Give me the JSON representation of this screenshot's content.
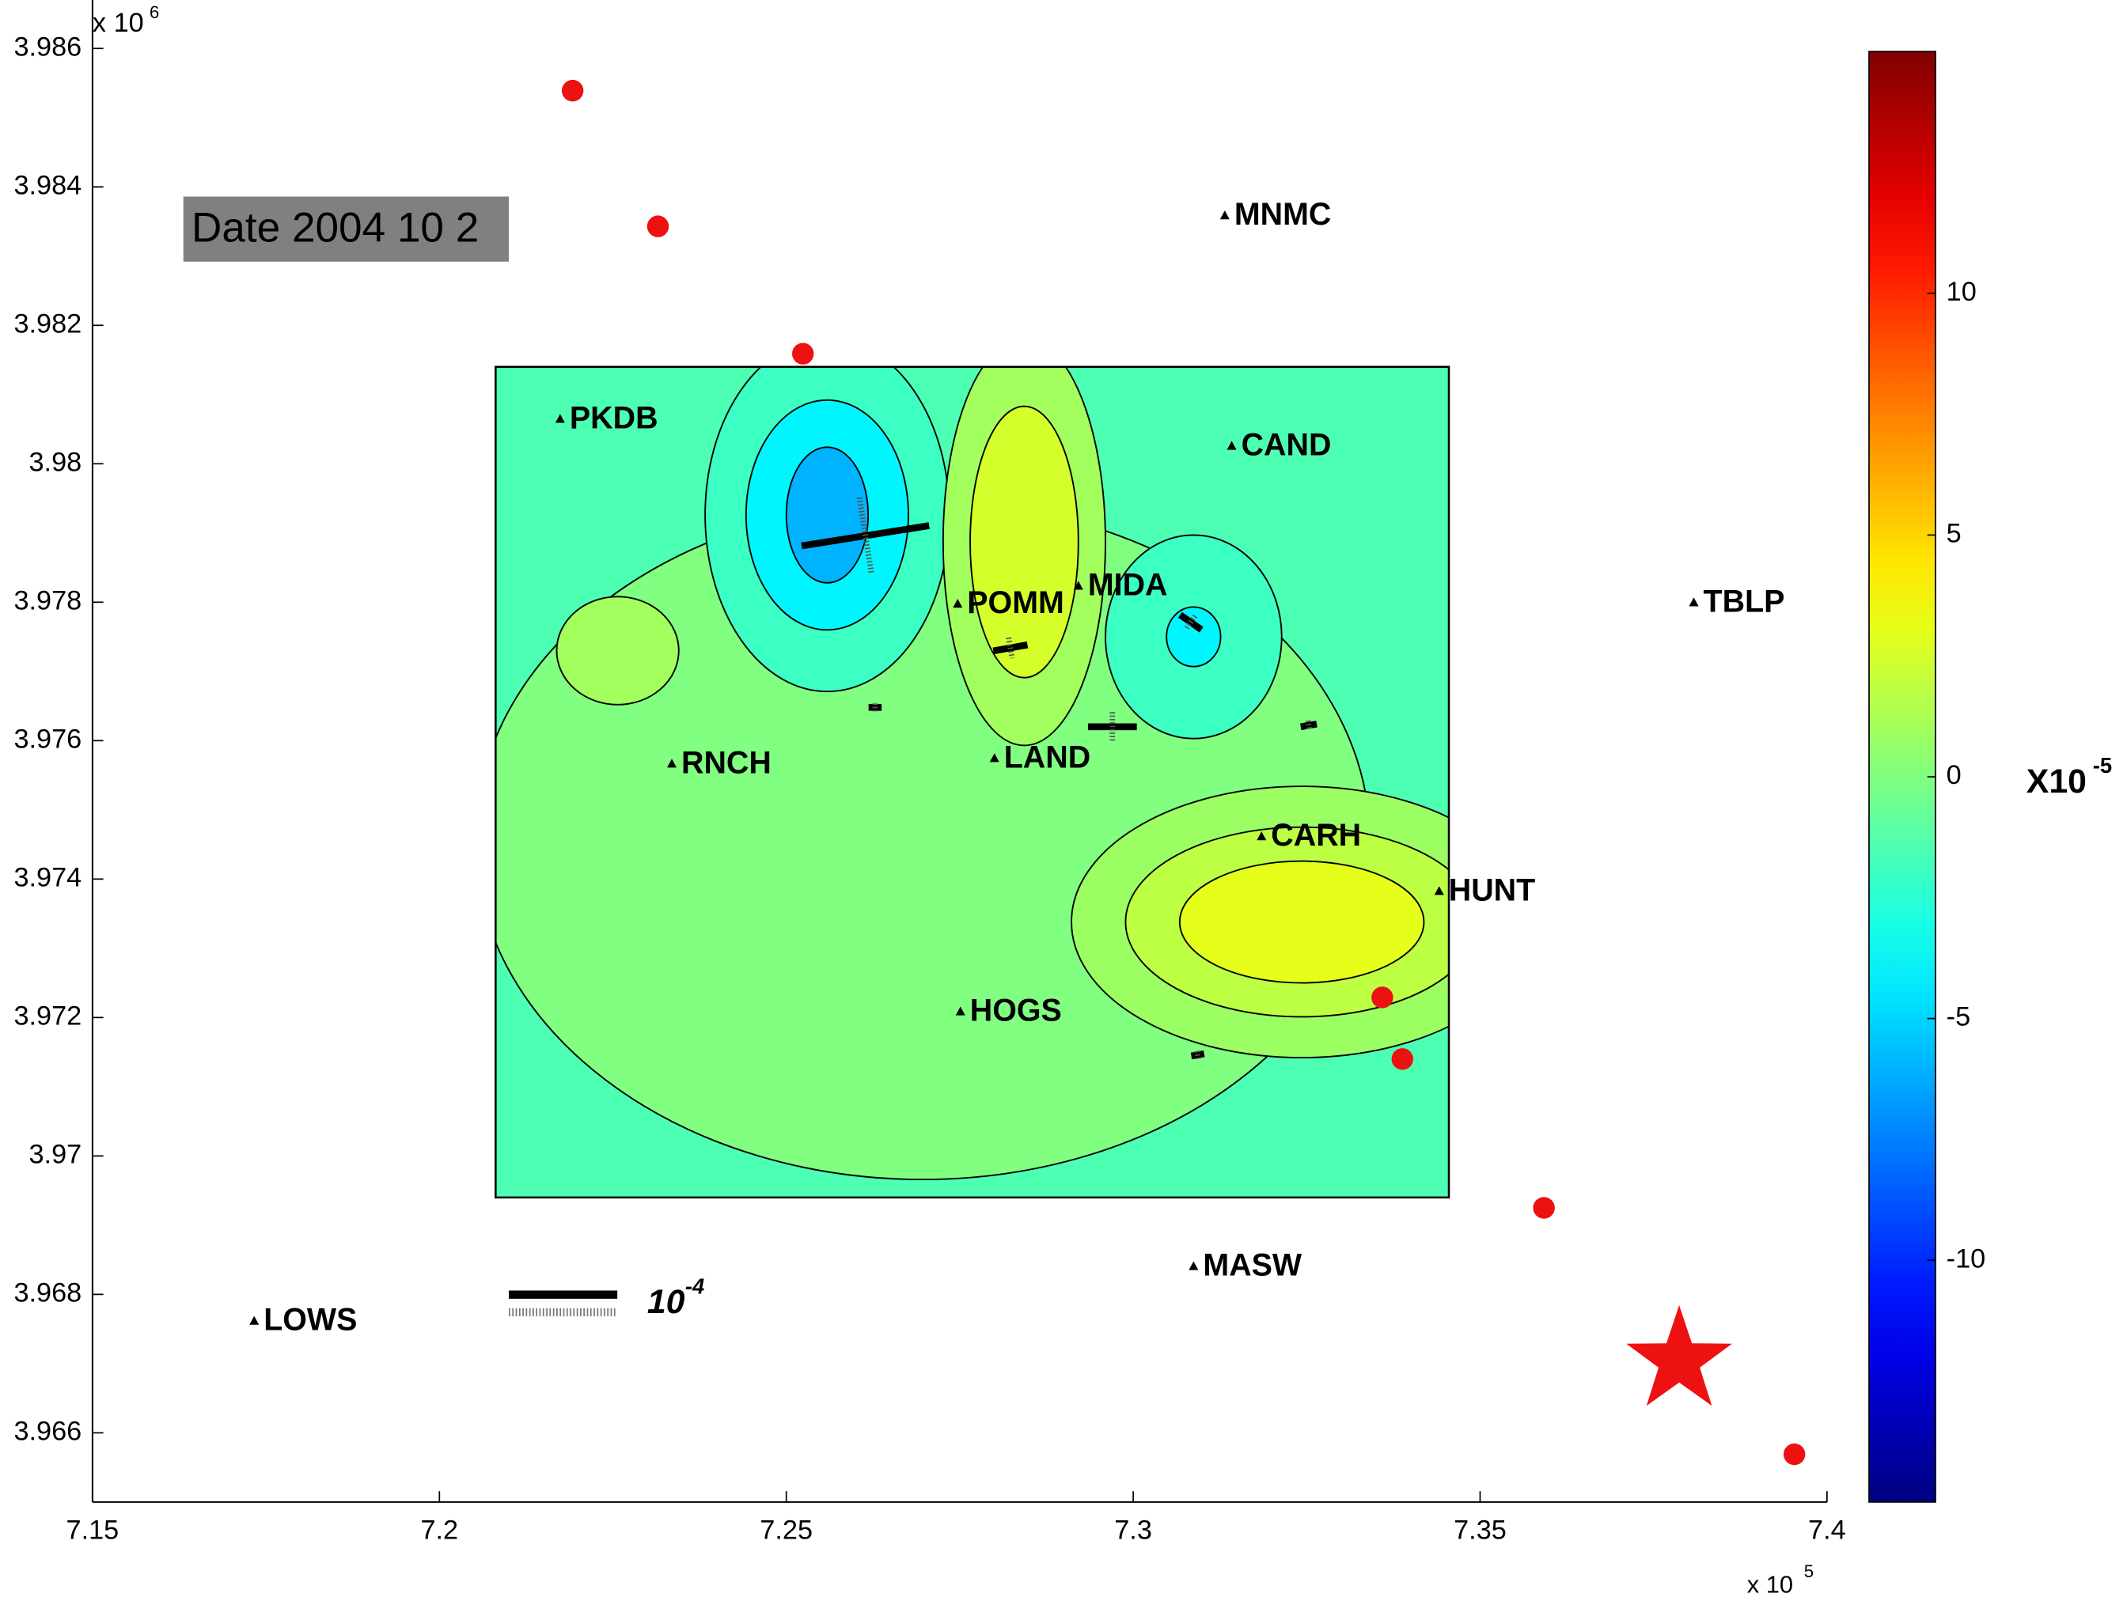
{
  "chart_data": {
    "type": "contour_map",
    "xlim": [
      7.15,
      7.4
    ],
    "xticks": [
      7.15,
      7.2,
      7.25,
      7.3,
      7.35,
      7.4
    ],
    "x_multiplier": "x 10",
    "x_multiplier_exp": "5",
    "ylim": [
      3.965,
      3.9867
    ],
    "yticks": [
      3.966,
      3.968,
      3.97,
      3.972,
      3.974,
      3.976,
      3.978,
      3.98,
      3.982,
      3.984,
      3.986
    ],
    "y_multiplier": "x 10",
    "y_multiplier_exp": "6",
    "date_label": "Date 2004 10 2",
    "colorbar": {
      "lim": [
        -15,
        15
      ],
      "ticks": [
        -10,
        -5,
        0,
        5,
        10
      ],
      "label": "X10",
      "label_exp": "-5"
    },
    "field": {
      "xlim": [
        7.2081,
        7.3455
      ],
      "ylim": [
        3.9694,
        3.9814
      ],
      "background": -1.5,
      "regions": [
        {
          "x": 7.2696,
          "y": 3.97456,
          "rx": 0.0645,
          "ry": 0.0049,
          "level": 0
        },
        {
          "x": 7.2257,
          "y": 3.9773,
          "rx": 0.0088,
          "ry": 0.00078,
          "level": 1
        },
        {
          "x": 7.3243,
          "y": 3.97338,
          "rx": 0.0332,
          "ry": 0.00196,
          "level": 0.8
        },
        {
          "x": 7.3243,
          "y": 3.97338,
          "rx": 0.0254,
          "ry": 0.00137,
          "level": 1.8
        },
        {
          "x": 7.3243,
          "y": 3.97338,
          "rx": 0.0176,
          "ry": 0.00088,
          "level": 3
        },
        {
          "x": 7.2559,
          "y": 3.97926,
          "rx": 0.0176,
          "ry": 0.00255,
          "level": -2
        },
        {
          "x": 7.2559,
          "y": 3.97926,
          "rx": 0.0117,
          "ry": 0.00166,
          "level": -4
        },
        {
          "x": 7.2559,
          "y": 3.97926,
          "rx": 0.0059,
          "ry": 0.00098,
          "level": -6
        },
        {
          "x": 7.2843,
          "y": 3.97887,
          "rx": 0.0117,
          "ry": 0.00294,
          "level": 1
        },
        {
          "x": 7.2843,
          "y": 3.97887,
          "rx": 0.0078,
          "ry": 0.00196,
          "level": 2.5
        },
        {
          "x": 7.3087,
          "y": 3.9775,
          "rx": 0.0127,
          "ry": 0.00147,
          "level": -2
        },
        {
          "x": 7.3087,
          "y": 3.9775,
          "rx": 0.0039,
          "ry": 0.00043,
          "level": -4
        }
      ]
    },
    "stations": [
      {
        "name": "PKDB",
        "x": 7.2174,
        "y": 3.98065
      },
      {
        "name": "CAND",
        "x": 7.3142,
        "y": 3.98026
      },
      {
        "name": "MNMC",
        "x": 7.3132,
        "y": 3.98359
      },
      {
        "name": "POMM",
        "x": 7.2747,
        "y": 3.97798
      },
      {
        "name": "MIDA",
        "x": 7.2921,
        "y": 3.97824
      },
      {
        "name": "TBLP",
        "x": 7.3808,
        "y": 3.978
      },
      {
        "name": "RNCH",
        "x": 7.2335,
        "y": 3.97567
      },
      {
        "name": "LAND",
        "x": 7.28,
        "y": 3.97575
      },
      {
        "name": "CARH",
        "x": 7.3185,
        "y": 3.97462
      },
      {
        "name": "HUNT",
        "x": 7.3441,
        "y": 3.97383
      },
      {
        "name": "HOGS",
        "x": 7.2751,
        "y": 3.97209
      },
      {
        "name": "MASW",
        "x": 7.3087,
        "y": 3.96841
      },
      {
        "name": "LOWS",
        "x": 7.1733,
        "y": 3.96762
      }
    ],
    "events": {
      "color": "#ee1111",
      "x": [
        7.2192,
        7.2315,
        7.2524,
        7.3359,
        7.3388,
        7.3592,
        7.3953
      ],
      "y": [
        3.98539,
        3.98343,
        3.98159,
        3.97229,
        3.9714,
        3.96925,
        3.96569
      ]
    },
    "mainshock": {
      "x": 7.3787,
      "y": 3.96704,
      "color": "#ee1111"
    },
    "strain_bars": [
      {
        "x": 7.2614,
        "y": 3.97896,
        "angle": -9,
        "magnitude": 11.9
      },
      {
        "x": 7.2823,
        "y": 3.97734,
        "angle": -10,
        "magnitude": 3.2
      },
      {
        "x": 7.297,
        "y": 3.9762,
        "angle": 0,
        "magnitude": 4.5
      },
      {
        "x": 7.3083,
        "y": 3.97771,
        "angle": 35,
        "magnitude": 2.4
      },
      {
        "x": 7.2628,
        "y": 3.97648,
        "angle": 0,
        "magnitude": 1.2
      },
      {
        "x": 7.3253,
        "y": 3.97622,
        "angle": -10,
        "magnitude": 1.5
      },
      {
        "x": 7.3093,
        "y": 3.97146,
        "angle": -10,
        "magnitude": 1.2
      }
    ],
    "scale_bar": {
      "label": "10",
      "exp": "-4"
    }
  }
}
